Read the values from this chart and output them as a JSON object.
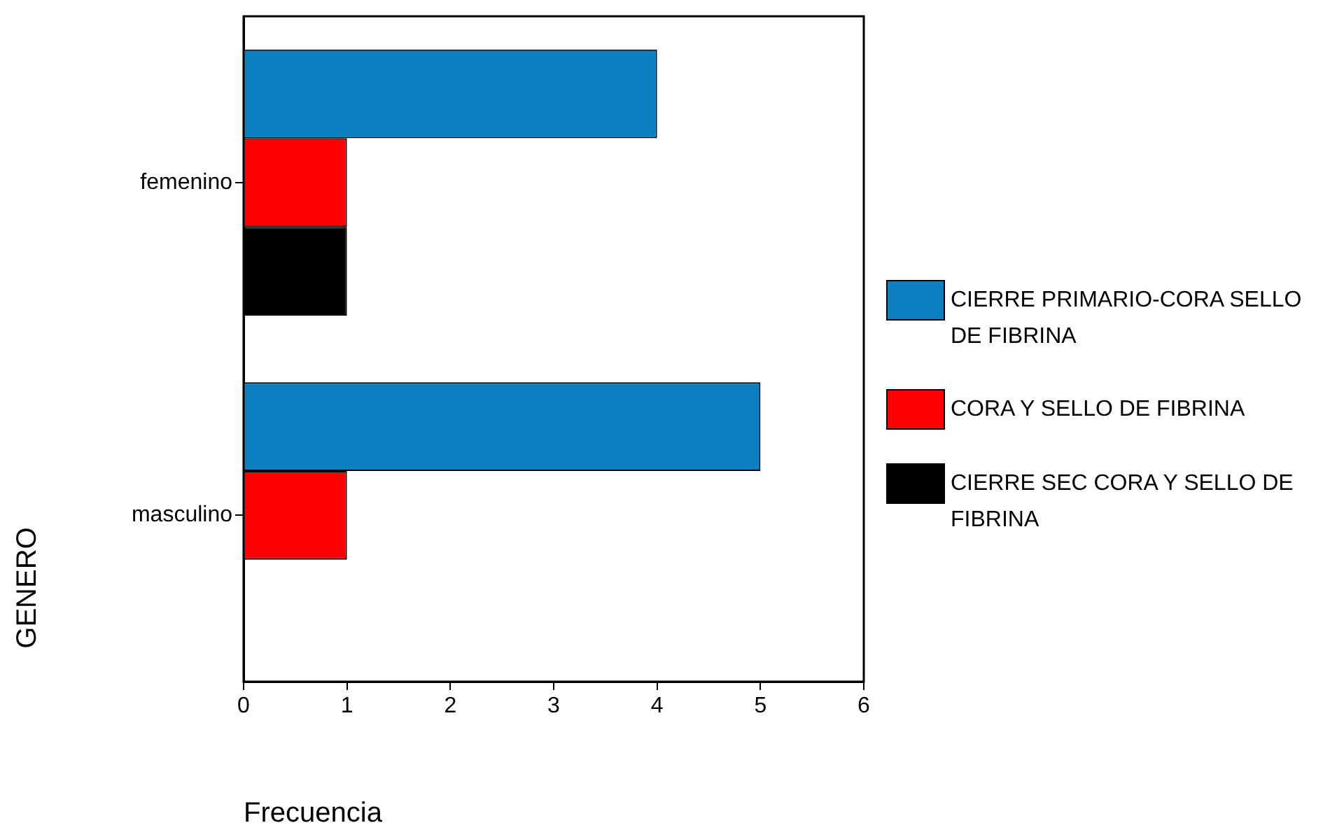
{
  "chart_data": {
    "type": "bar",
    "orientation": "horizontal",
    "xlabel": "Frecuencia",
    "ylabel": "GENERO",
    "categories": [
      "femenino",
      "masculino"
    ],
    "series": [
      {
        "name": "CIERRE PRIMARIO-CORA SELLO DE FIBRINA",
        "color": "#0a80c0",
        "values": [
          4,
          5
        ]
      },
      {
        "name": "CORA Y SELLO DE FIBRINA",
        "color": "#ff0000",
        "values": [
          1,
          1
        ]
      },
      {
        "name": "CIERRE SEC CORA Y SELLO DE FIBRINA",
        "color": "#000000",
        "values": [
          1,
          null
        ]
      }
    ],
    "xlim": [
      0,
      6
    ],
    "xticks": [
      0,
      1,
      2,
      3,
      4,
      5,
      6
    ],
    "legend": "right"
  }
}
